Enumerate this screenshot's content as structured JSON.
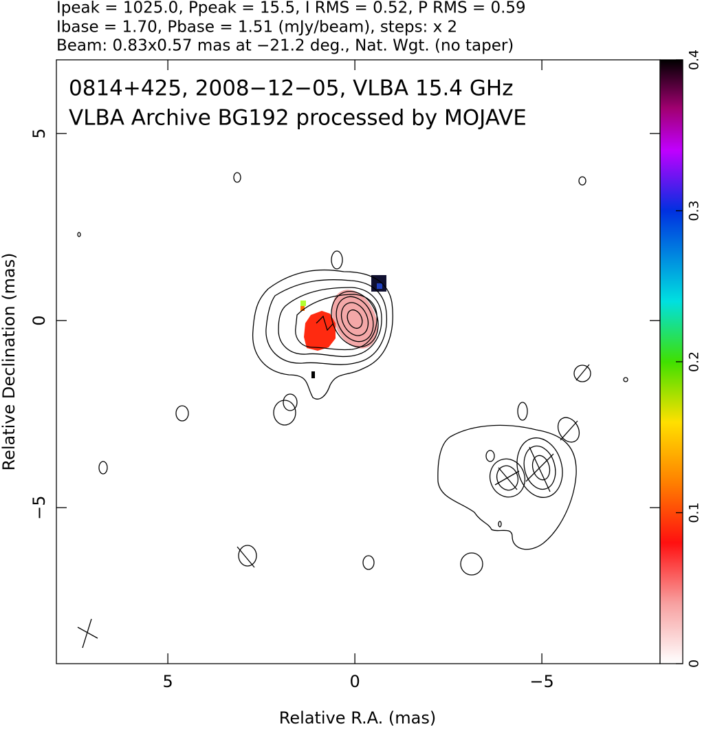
{
  "header": {
    "lines": [
      "Ipeak = 1025.0, Ppeak = 15.5, I RMS = 0.52, P RMS = 0.59",
      "Ibase = 1.70, Pbase = 1.51 (mJy/beam), steps: x 2",
      "Beam: 0.83x0.57 mas at −21.2 deg., Nat. Wgt. (no taper)"
    ]
  },
  "chart_data": {
    "type": "contour",
    "title_lines": [
      "0814+425, 2008−12−05, VLBA 15.4 GHz",
      "VLBA Archive BG192 processed by MOJAVE"
    ],
    "x_label": "Relative R.A. (mas)",
    "y_label": "Relative Declination (mas)",
    "xlim": [
      7.98,
      -8.16
    ],
    "ylim": [
      -9.17,
      6.97
    ],
    "xticks": [
      5,
      0,
      {
        "value": -5,
        "label": "−5"
      }
    ],
    "yticks": [
      5,
      0,
      {
        "value": -5,
        "label": "−5"
      }
    ],
    "colorbar": {
      "lim": [
        0,
        0.4
      ],
      "ticks": [
        0,
        0.1,
        0.2,
        0.3,
        0.4
      ]
    }
  }
}
